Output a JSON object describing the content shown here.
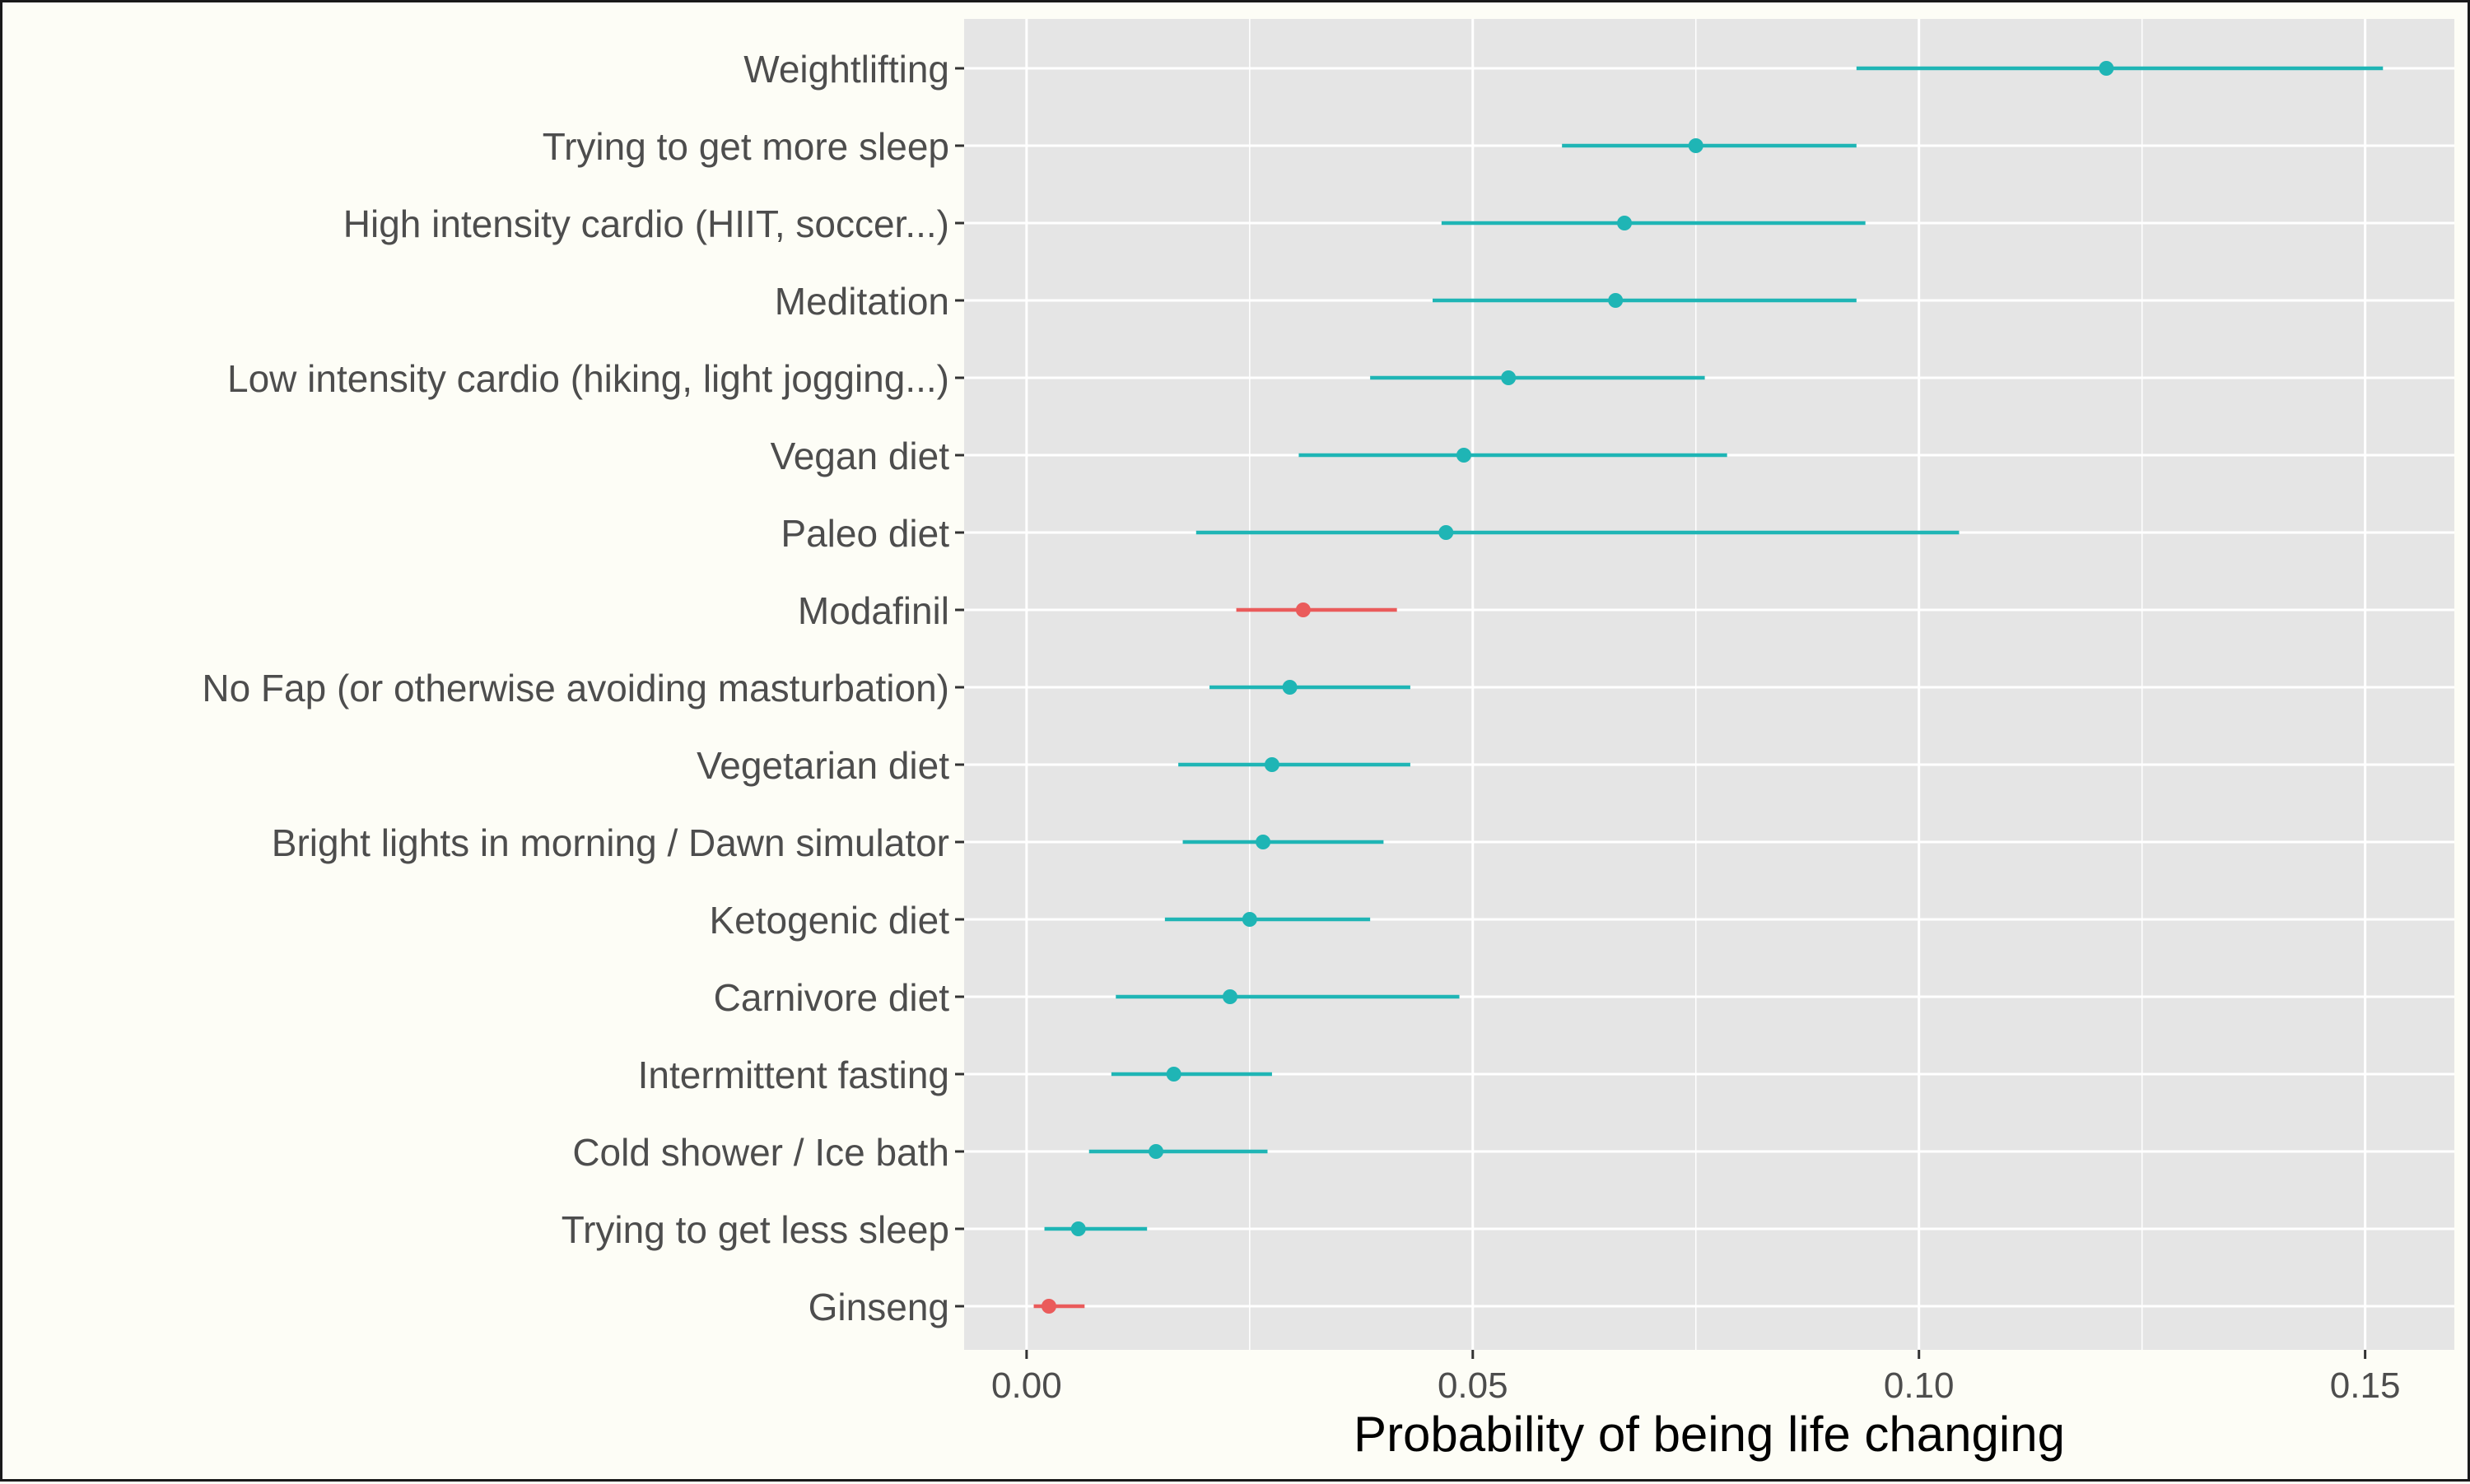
{
  "chart_data": {
    "type": "dot-whisker",
    "xlabel": "Probability of being life changing",
    "ylabel": "",
    "xlim": [
      -0.007,
      0.16
    ],
    "x_ticks": [
      0.0,
      0.05,
      0.1,
      0.15
    ],
    "x_tick_labels": [
      "0.00",
      "0.05",
      "0.10",
      "0.15"
    ],
    "grid": true,
    "legend": "none",
    "colors": {
      "teal": "#1fb5b5",
      "red": "#ea5b5b",
      "panel": "#e5e5e5",
      "grid": "#ffffff",
      "text": "#4d4d4d"
    },
    "points": [
      {
        "label": "Weightlifting",
        "estimate": 0.121,
        "low": 0.093,
        "high": 0.152,
        "color": "teal"
      },
      {
        "label": "Trying to get more sleep",
        "estimate": 0.075,
        "low": 0.06,
        "high": 0.093,
        "color": "teal"
      },
      {
        "label": "High intensity cardio (HIIT, soccer...)",
        "estimate": 0.067,
        "low": 0.0465,
        "high": 0.094,
        "color": "teal"
      },
      {
        "label": "Meditation",
        "estimate": 0.066,
        "low": 0.0455,
        "high": 0.093,
        "color": "teal"
      },
      {
        "label": "Low intensity cardio (hiking, light jogging...)",
        "estimate": 0.054,
        "low": 0.0385,
        "high": 0.076,
        "color": "teal"
      },
      {
        "label": "Vegan diet",
        "estimate": 0.049,
        "low": 0.0305,
        "high": 0.0785,
        "color": "teal"
      },
      {
        "label": "Paleo diet",
        "estimate": 0.047,
        "low": 0.019,
        "high": 0.1045,
        "color": "teal"
      },
      {
        "label": "Modafinil",
        "estimate": 0.031,
        "low": 0.0235,
        "high": 0.0415,
        "color": "red"
      },
      {
        "label": "No Fap (or otherwise avoiding masturbation)",
        "estimate": 0.0295,
        "low": 0.0205,
        "high": 0.043,
        "color": "teal"
      },
      {
        "label": "Vegetarian diet",
        "estimate": 0.0275,
        "low": 0.017,
        "high": 0.043,
        "color": "teal"
      },
      {
        "label": "Bright lights in morning / Dawn simulator",
        "estimate": 0.0265,
        "low": 0.0175,
        "high": 0.04,
        "color": "teal"
      },
      {
        "label": "Ketogenic diet",
        "estimate": 0.025,
        "low": 0.0155,
        "high": 0.0385,
        "color": "teal"
      },
      {
        "label": "Carnivore diet",
        "estimate": 0.0228,
        "low": 0.01,
        "high": 0.0485,
        "color": "teal"
      },
      {
        "label": "Intermittent fasting",
        "estimate": 0.0165,
        "low": 0.0095,
        "high": 0.0275,
        "color": "teal"
      },
      {
        "label": "Cold shower / Ice bath",
        "estimate": 0.0145,
        "low": 0.007,
        "high": 0.027,
        "color": "teal"
      },
      {
        "label": "Trying to get less sleep",
        "estimate": 0.0058,
        "low": 0.002,
        "high": 0.0135,
        "color": "teal"
      },
      {
        "label": "Ginseng",
        "estimate": 0.0025,
        "low": 0.0008,
        "high": 0.0065,
        "color": "red"
      }
    ]
  }
}
